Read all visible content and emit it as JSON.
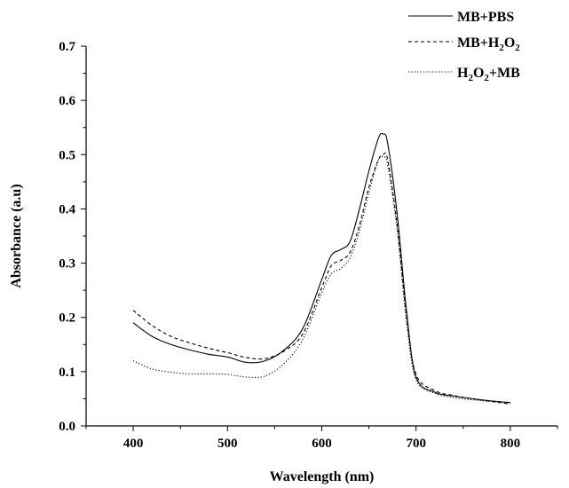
{
  "chart_data": {
    "type": "line",
    "xlabel": "Wavelength (nm)",
    "ylabel": "Absorbance (a.u)",
    "xlim": [
      350,
      850
    ],
    "ylim": [
      0.0,
      0.7
    ],
    "xticks": [
      400,
      500,
      600,
      700,
      800
    ],
    "yticks": [
      0.0,
      0.1,
      0.2,
      0.3,
      0.4,
      0.5,
      0.6,
      0.7
    ],
    "xtick_labels": [
      "400",
      "500",
      "600",
      "700",
      "800"
    ],
    "ytick_labels": [
      "0.0",
      "0.1",
      "0.2",
      "0.3",
      "0.4",
      "0.5",
      "0.6",
      "0.7"
    ],
    "grid": false,
    "legend_position": "top-right",
    "series": [
      {
        "name": "MB+PBS",
        "legend_parts": [
          {
            "t": "MB+PBS",
            "sub": false
          }
        ],
        "style": "solid",
        "color": "#000000",
        "x": [
          400,
          420,
          440,
          460,
          480,
          500,
          520,
          540,
          560,
          580,
          600,
          610,
          620,
          630,
          640,
          650,
          660,
          665,
          670,
          680,
          690,
          700,
          720,
          740,
          760,
          780,
          800
        ],
        "y": [
          0.19,
          0.165,
          0.15,
          0.14,
          0.132,
          0.127,
          0.117,
          0.12,
          0.14,
          0.18,
          0.27,
          0.314,
          0.325,
          0.34,
          0.4,
          0.47,
          0.53,
          0.538,
          0.52,
          0.39,
          0.21,
          0.09,
          0.062,
          0.055,
          0.05,
          0.046,
          0.043
        ]
      },
      {
        "name": "MB+H2O2",
        "legend_parts": [
          {
            "t": "MB+H",
            "sub": false
          },
          {
            "t": "2",
            "sub": true
          },
          {
            "t": "O",
            "sub": false
          },
          {
            "t": "2",
            "sub": true
          }
        ],
        "style": "dashed",
        "color": "#000000",
        "x": [
          400,
          420,
          440,
          460,
          480,
          500,
          520,
          540,
          560,
          580,
          600,
          610,
          620,
          630,
          640,
          650,
          660,
          665,
          670,
          680,
          690,
          700,
          720,
          740,
          760,
          780,
          800
        ],
        "y": [
          0.213,
          0.185,
          0.165,
          0.153,
          0.143,
          0.135,
          0.126,
          0.124,
          0.138,
          0.17,
          0.255,
          0.295,
          0.305,
          0.32,
          0.37,
          0.44,
          0.49,
          0.5,
          0.49,
          0.37,
          0.2,
          0.095,
          0.065,
          0.056,
          0.05,
          0.045,
          0.04
        ]
      },
      {
        "name": "H2O2+MB",
        "legend_parts": [
          {
            "t": "H",
            "sub": false
          },
          {
            "t": "2",
            "sub": true
          },
          {
            "t": "O",
            "sub": false
          },
          {
            "t": "2",
            "sub": true
          },
          {
            "t": "+MB",
            "sub": false
          }
        ],
        "style": "dotted",
        "color": "#000000",
        "x": [
          400,
          420,
          440,
          460,
          480,
          500,
          520,
          540,
          560,
          580,
          600,
          610,
          620,
          630,
          640,
          650,
          660,
          665,
          670,
          680,
          690,
          700,
          720,
          740,
          760,
          780,
          800
        ],
        "y": [
          0.12,
          0.105,
          0.099,
          0.096,
          0.096,
          0.095,
          0.09,
          0.092,
          0.115,
          0.16,
          0.245,
          0.28,
          0.29,
          0.31,
          0.36,
          0.43,
          0.49,
          0.495,
          0.48,
          0.36,
          0.19,
          0.085,
          0.06,
          0.052,
          0.048,
          0.045,
          0.042
        ]
      }
    ]
  }
}
